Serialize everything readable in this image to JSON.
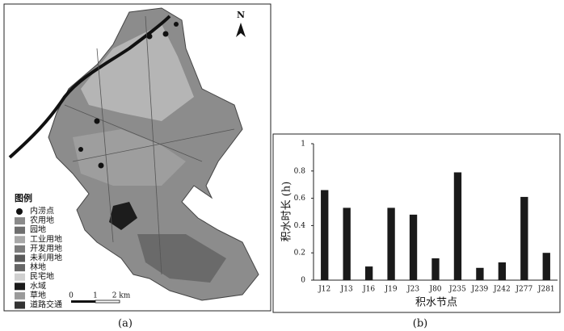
{
  "map": {
    "north": "N",
    "legend_title": "图例",
    "legend": [
      {
        "label": "内涝点",
        "color": "#111111"
      },
      {
        "label": "农用地",
        "color": "#8a8a8a"
      },
      {
        "label": "园地",
        "color": "#6e6e6e"
      },
      {
        "label": "工业用地",
        "color": "#a8a8a8"
      },
      {
        "label": "开发用地",
        "color": "#7c7c7c"
      },
      {
        "label": "未利用地",
        "color": "#5a5a5a"
      },
      {
        "label": "林地",
        "color": "#666666"
      },
      {
        "label": "民宅地",
        "color": "#d0d0d0"
      },
      {
        "label": "水域",
        "color": "#1c1c1c"
      },
      {
        "label": "草地",
        "color": "#9a9a9a"
      },
      {
        "label": "道路交通",
        "color": "#333333"
      }
    ],
    "scale_labels": [
      "0",
      "1",
      "2 km"
    ],
    "caption": "(a)"
  },
  "chart_data": {
    "type": "bar",
    "y_label": "积水时长 (h)",
    "x_label": "积水节点",
    "categories": [
      "J12",
      "J13",
      "J16",
      "J19",
      "J23",
      "J80",
      "J235",
      "J239",
      "J242",
      "J277",
      "J281"
    ],
    "values": [
      0.66,
      0.53,
      0.1,
      0.53,
      0.48,
      0.16,
      0.79,
      0.09,
      0.13,
      0.61,
      0.2
    ],
    "color": "#1a1a1a",
    "ylim": [
      0,
      1
    ],
    "yticks": [
      0,
      0.2,
      0.4,
      0.6,
      0.8,
      1
    ],
    "grid": false,
    "caption": "(b)"
  }
}
